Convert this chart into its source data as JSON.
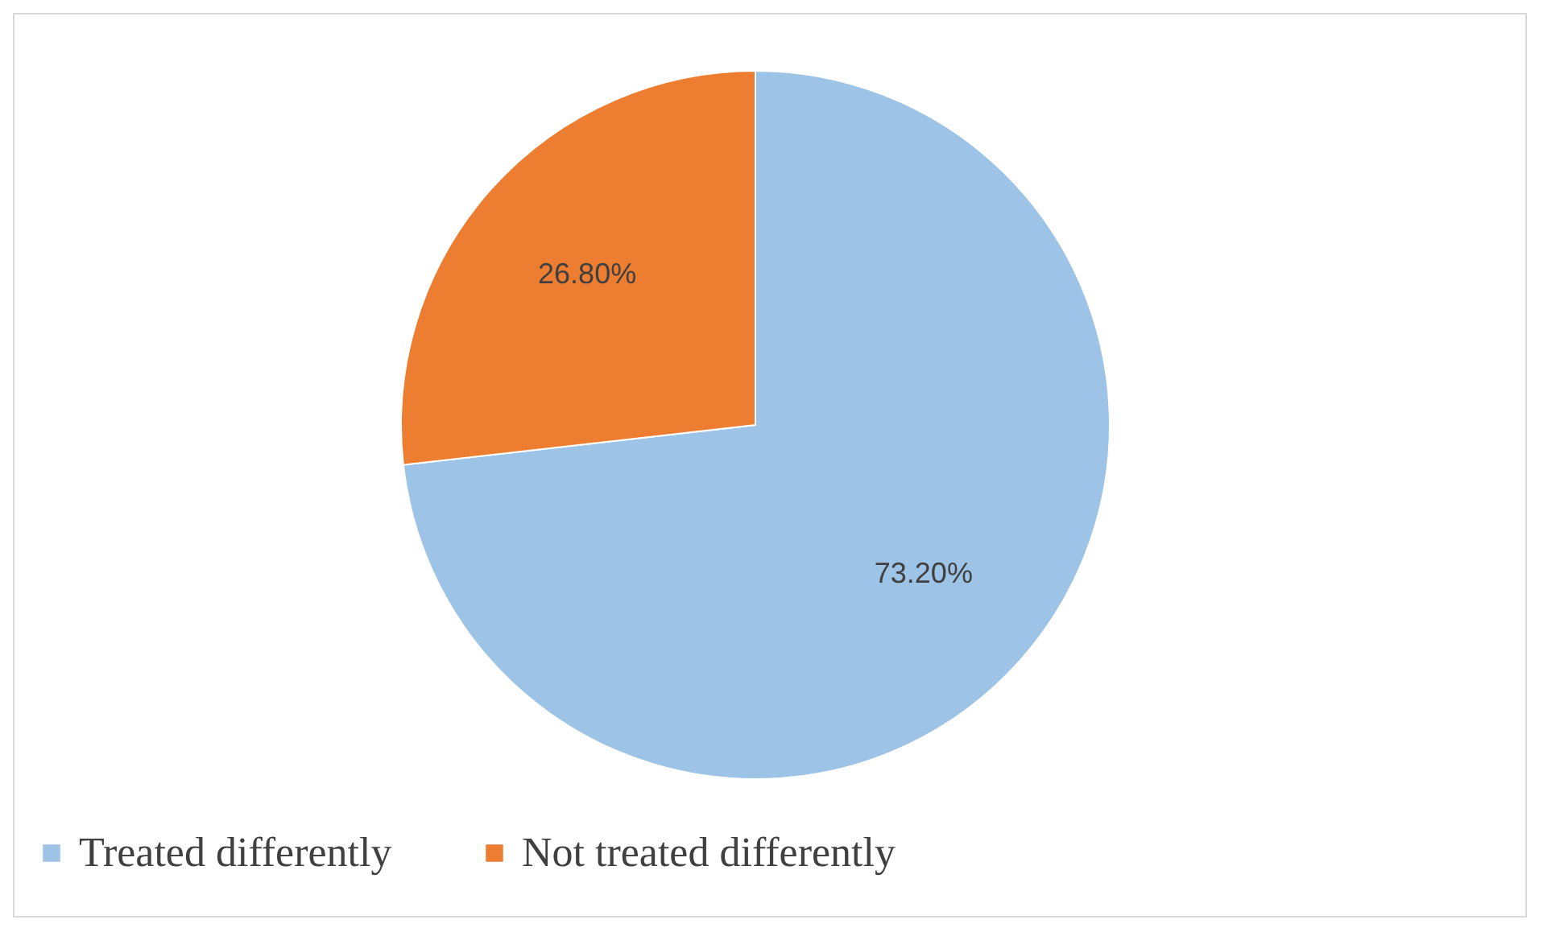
{
  "chart_data": {
    "type": "pie",
    "categories": [
      "Treated differently",
      "Not treated differently"
    ],
    "values": [
      73.2,
      26.8
    ],
    "colors": [
      "#9dc3e6",
      "#ed7d31"
    ],
    "value_labels": [
      "73.20%",
      "26.80%"
    ],
    "legend": "bottom"
  }
}
